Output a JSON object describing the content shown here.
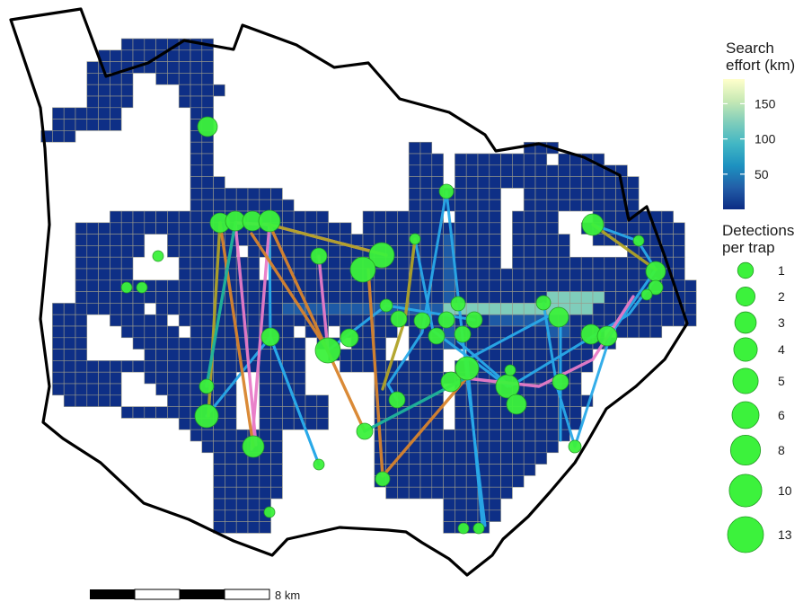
{
  "legend_effort": {
    "title_line1": "Search",
    "title_line2": "effort (km)",
    "ticks": [
      "150",
      "100",
      "50"
    ],
    "gradient": [
      "#ffffcc",
      "#c7e9b4",
      "#7fcdbb",
      "#41b6c4",
      "#1d91c0",
      "#225ea8",
      "#0c2c84"
    ],
    "scale_min_km": 0,
    "scale_max_km": 185,
    "tick_values_km": [
      150,
      100,
      50
    ]
  },
  "legend_detections": {
    "title_line1": "Detections",
    "title_line2": "per trap",
    "items": [
      "1",
      "2",
      "3",
      "4",
      "5",
      "6",
      "8",
      "10",
      "13"
    ],
    "values": [
      1,
      2,
      3,
      4,
      5,
      6,
      8,
      10,
      13
    ]
  },
  "scalebar": {
    "label": "8 km"
  },
  "colors": {
    "grid_cell": "#0e2f86",
    "grid_cell_mid": "#1d5aa6",
    "grid_cell_high": "#7fcdbb",
    "grid_stroke": "#9a9a8a",
    "boundary": "#000000",
    "trap_fill": "#3cf23c",
    "trap_stroke": "#249a24",
    "movement_colors": [
      "#29a9e8",
      "#e87bc7",
      "#d8842c",
      "#b0a226",
      "#20b49a"
    ]
  }
}
